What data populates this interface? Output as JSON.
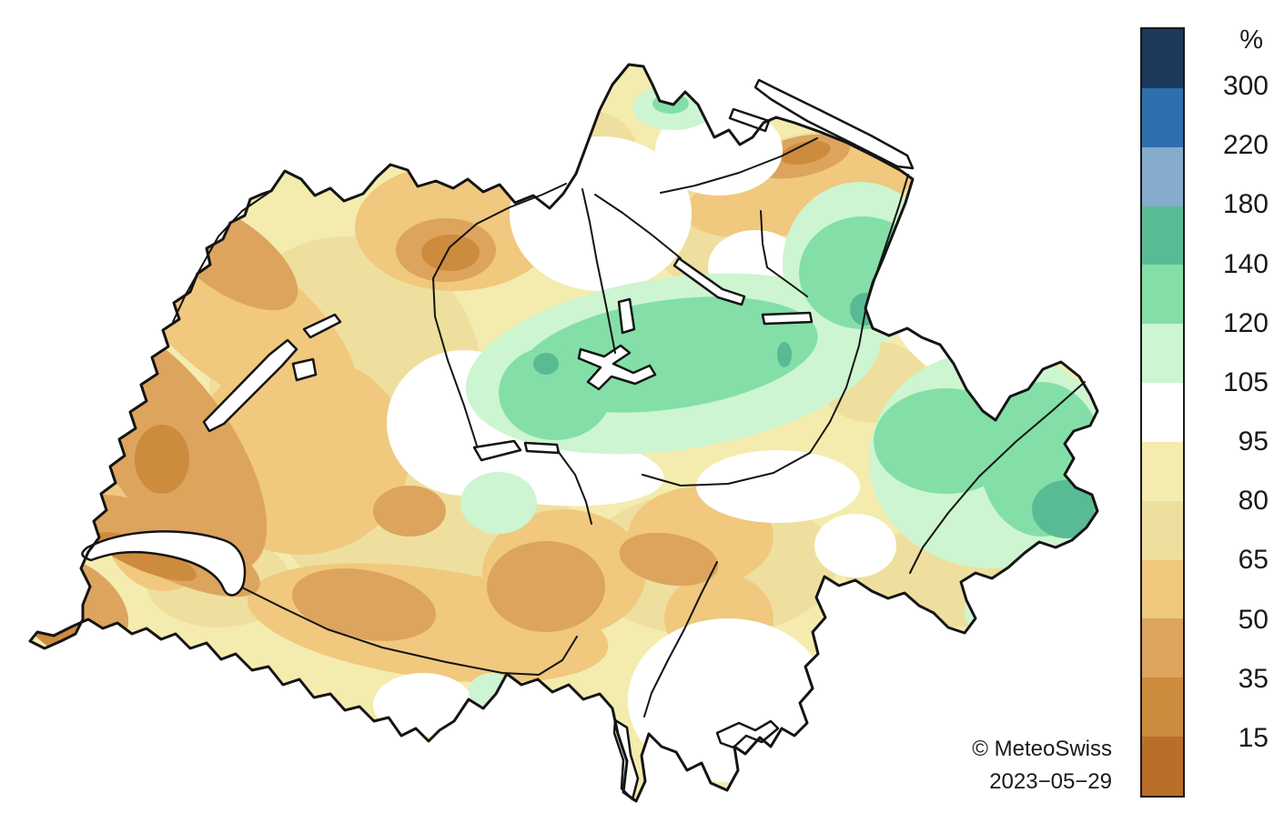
{
  "map": {
    "region_name": "switzerland-precipitation-map",
    "outline_color": "#141414",
    "water_color": "#ffffff"
  },
  "colorbar": {
    "unit_label": "%",
    "tick_labels": [
      "300",
      "220",
      "180",
      "140",
      "120",
      "105",
      "95",
      "80",
      "65",
      "50",
      "35",
      "15"
    ],
    "segment_order_top_to_bottom": [
      "gt300",
      "r220_300",
      "r180_220",
      "r140_180",
      "r120_140",
      "r105_120",
      "r95_105",
      "r80_95",
      "r65_80",
      "r50_65",
      "r35_50",
      "r15_35",
      "lt15"
    ],
    "palette": {
      "gt300": "#1b3a5c",
      "r220_300": "#2d70ae",
      "r180_220": "#85abcd",
      "r140_180": "#59bb94",
      "r120_140": "#83dfa7",
      "r105_120": "#cdf5d1",
      "r95_105": "#ffffff",
      "r80_95": "#f4ecae",
      "r65_80": "#efdf9e",
      "r50_65": "#f0c87e",
      "r35_50": "#dda45e",
      "r15_35": "#cd8b3e",
      "lt15": "#b96f2a"
    }
  },
  "attribution": {
    "copyright": "© MeteoSwiss",
    "date": "2023−05−29"
  },
  "chart_data": {
    "type": "heatmap",
    "title": "",
    "legend_unit": "%",
    "legend_bin_edges": [
      15,
      35,
      50,
      65,
      80,
      95,
      105,
      120,
      140,
      180,
      220,
      300
    ],
    "legend_position": "right",
    "notes_visible_on_image": [
      "© MeteoSwiss",
      "2023−05−29"
    ]
  }
}
